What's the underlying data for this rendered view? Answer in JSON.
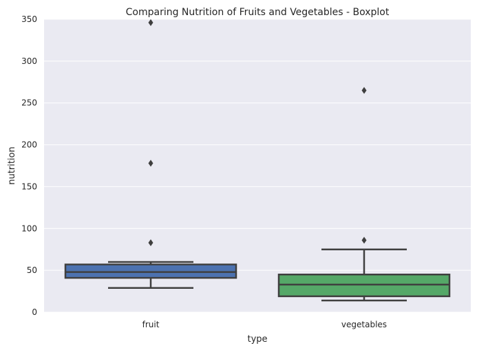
{
  "chart_data": {
    "type": "boxplot",
    "title": "Comparing Nutrition of Fruits and Vegetables - Boxplot",
    "xlabel": "type",
    "ylabel": "nutrition",
    "ylim": [
      0,
      350
    ],
    "yticks": [
      0,
      50,
      100,
      150,
      200,
      250,
      300,
      350
    ],
    "grid": true,
    "categories": [
      "fruit",
      "vegetables"
    ],
    "boxes": [
      {
        "category": "fruit",
        "color": "#4c72b0",
        "whisker_low": 29,
        "q1": 41,
        "median": 48,
        "q3": 57,
        "whisker_high": 60,
        "outliers": [
          83,
          178,
          346
        ]
      },
      {
        "category": "vegetables",
        "color": "#55a868",
        "whisker_low": 14,
        "q1": 19,
        "median": 33,
        "q3": 45,
        "whisker_high": 75,
        "outliers": [
          86,
          265
        ]
      }
    ]
  }
}
